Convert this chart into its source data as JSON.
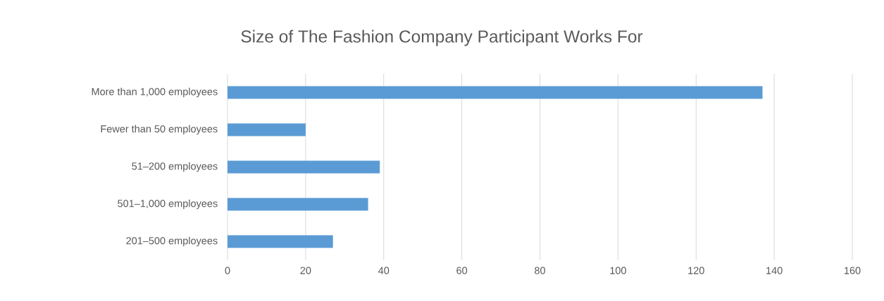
{
  "chart_data": {
    "type": "bar",
    "orientation": "horizontal",
    "title": "Size of The Fashion Company Participant Works For",
    "categories": [
      "More than 1,000 employees",
      "Fewer than 50 employees",
      "51–200 employees",
      "501–1,000 employees",
      "201–500 employees"
    ],
    "values": [
      137,
      20,
      39,
      36,
      27
    ],
    "color": "#5b9bd5",
    "xlim": [
      0,
      160
    ],
    "xticks": [
      0,
      20,
      40,
      60,
      80,
      100,
      120,
      140,
      160
    ],
    "grid": "x"
  }
}
